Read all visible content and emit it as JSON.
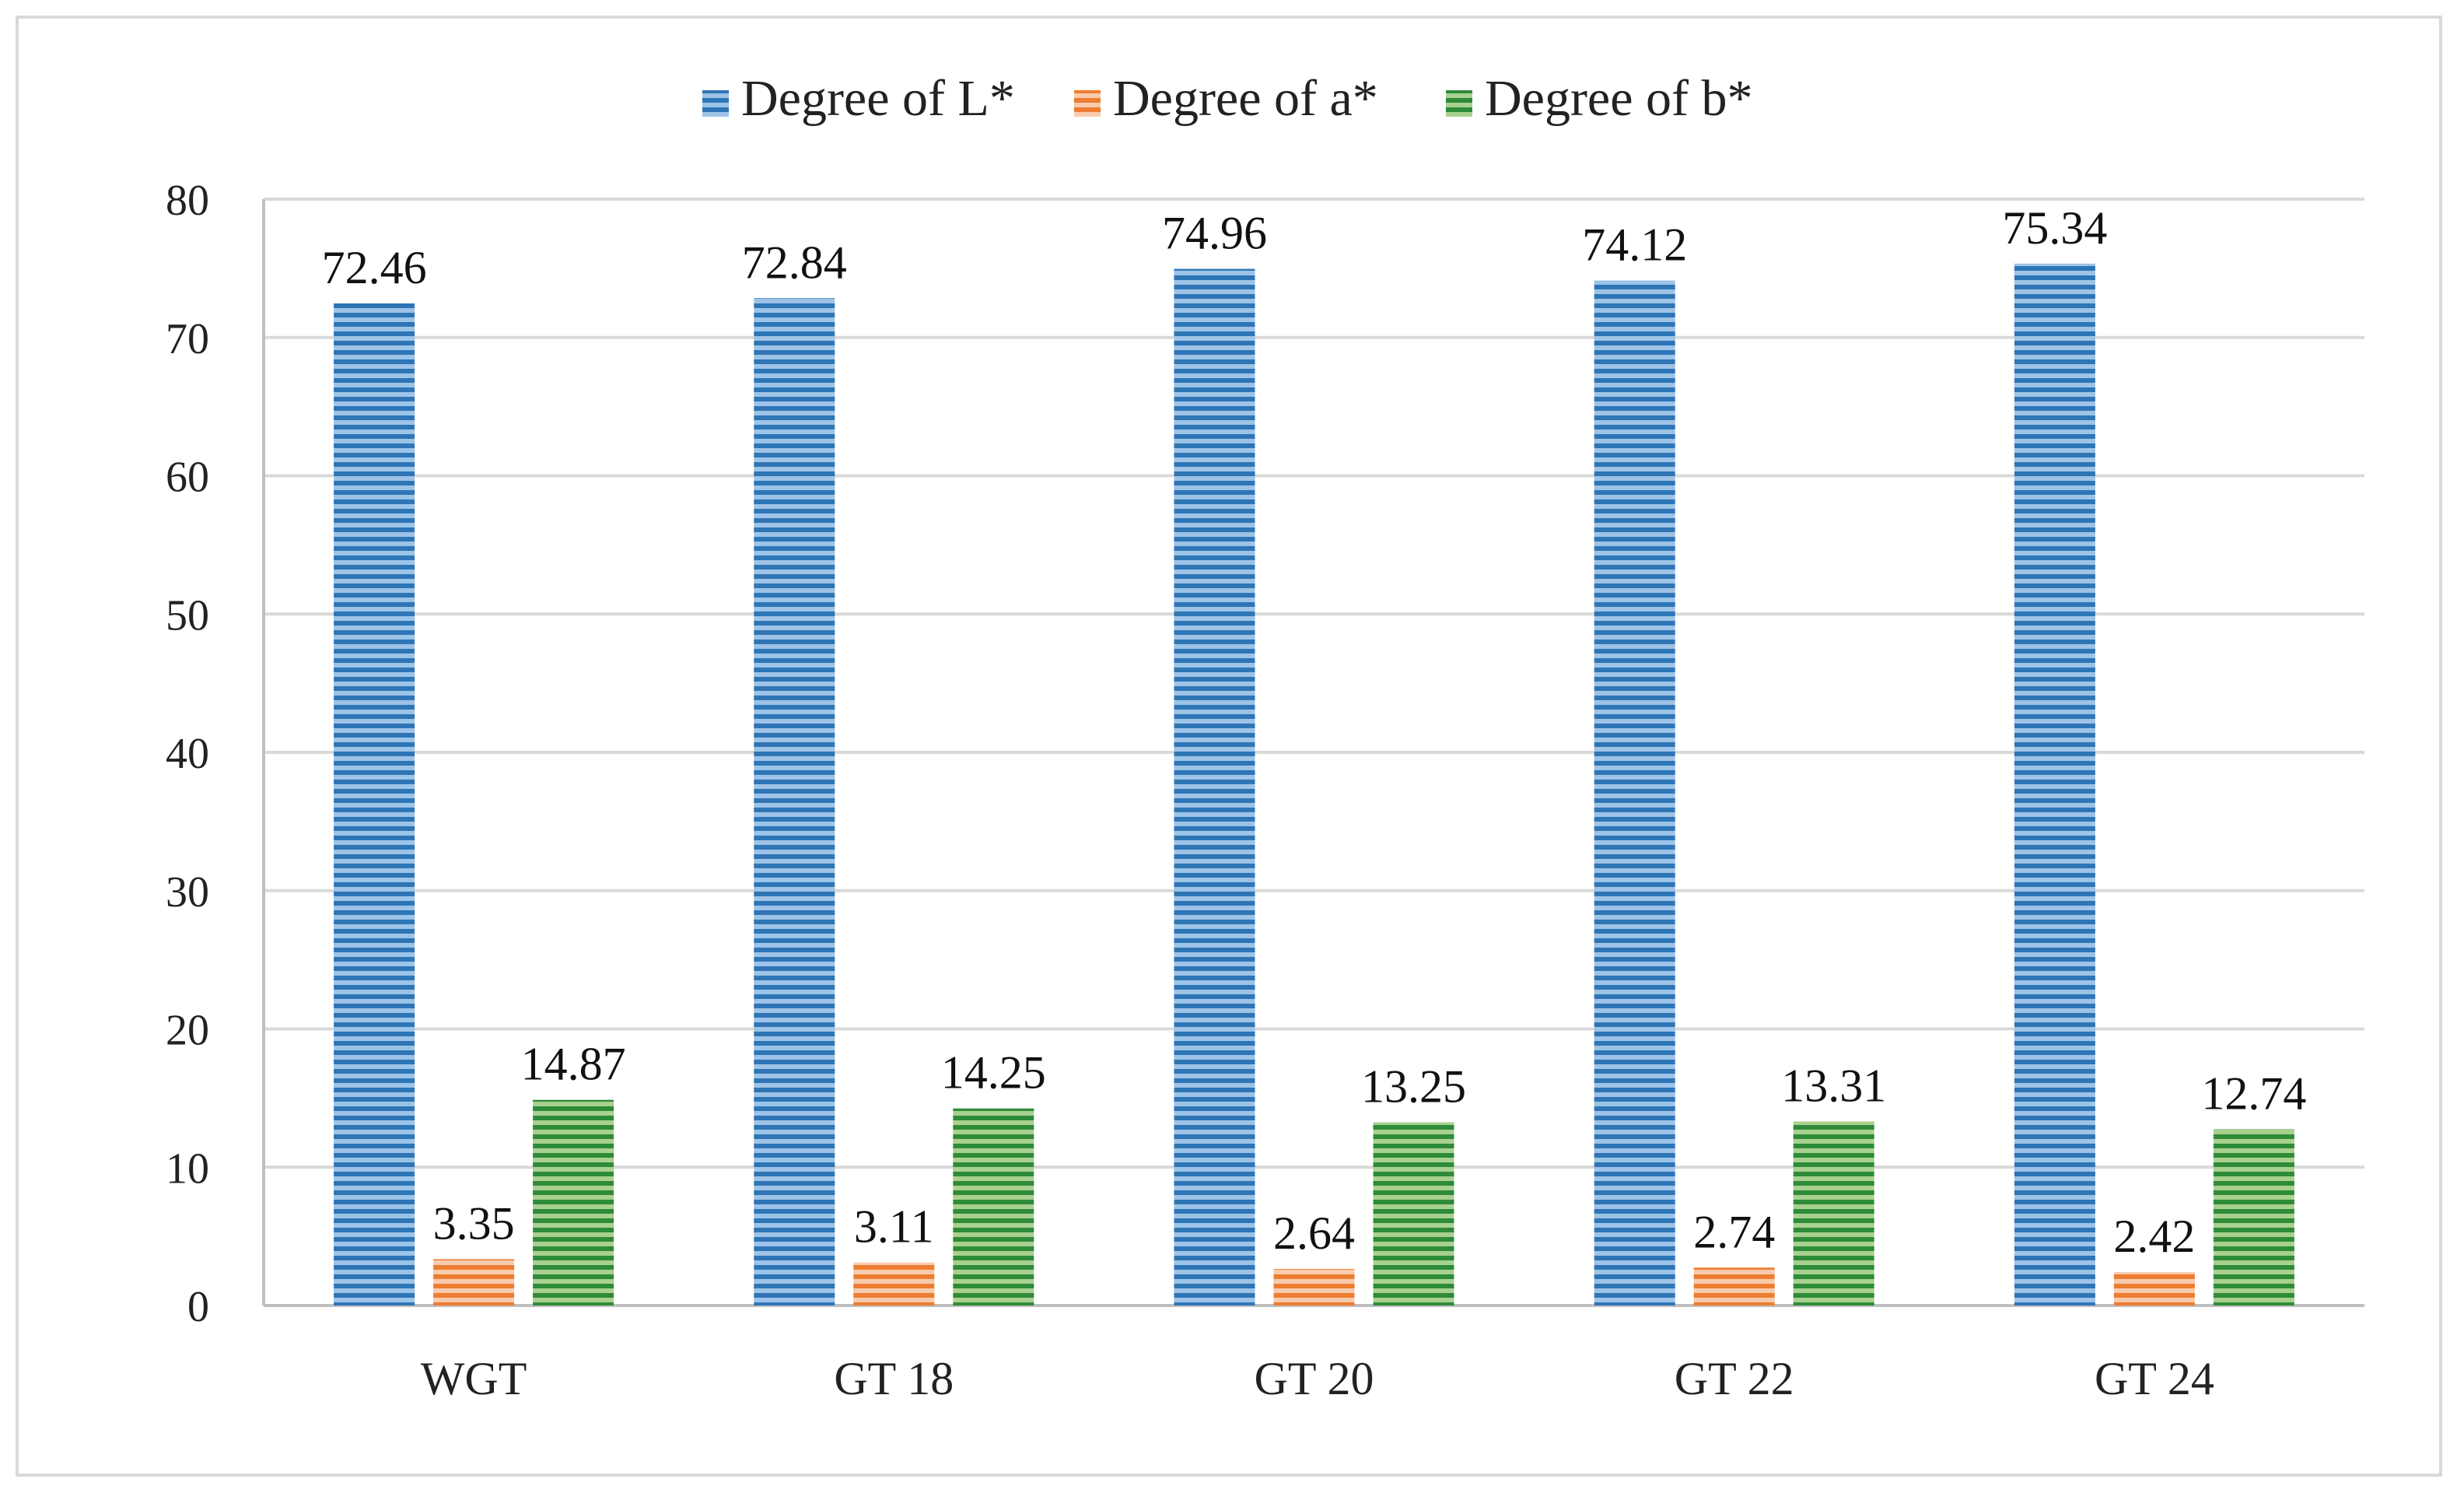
{
  "chart_data": {
    "type": "bar",
    "title": "",
    "xlabel": "",
    "ylabel": "",
    "categories": [
      "WGT",
      "GT 18",
      "GT 20",
      "GT 22",
      "GT 24"
    ],
    "series": [
      {
        "name": "Degree of L*",
        "values": [
          72.46,
          72.84,
          74.96,
          74.12,
          75.34
        ],
        "color": "#2e75b6",
        "pattern": "horizontal-stripes-blue",
        "labels": [
          "72.46",
          "72.84",
          "74.96",
          "74.12",
          "75.34"
        ]
      },
      {
        "name": "Degree of a*",
        "values": [
          3.35,
          3.11,
          2.64,
          2.74,
          2.42
        ],
        "color": "#ed7d31",
        "pattern": "horizontal-stripes-orange",
        "labels": [
          "3.35",
          "3.11",
          "2.64",
          "2.74",
          "2.42"
        ]
      },
      {
        "name": "Degree of b*",
        "values": [
          14.87,
          14.25,
          13.25,
          13.31,
          12.74
        ],
        "color": "#2e8b3a",
        "pattern": "horizontal-stripes-green",
        "labels": [
          "14.87",
          "14.25",
          "13.25",
          "13.31",
          "12.74"
        ]
      }
    ],
    "ylim": [
      0,
      80
    ],
    "yticks": [
      "0",
      "10",
      "20",
      "30",
      "40",
      "50",
      "60",
      "70",
      "80"
    ],
    "grid": true,
    "legend_position": "top-center"
  }
}
